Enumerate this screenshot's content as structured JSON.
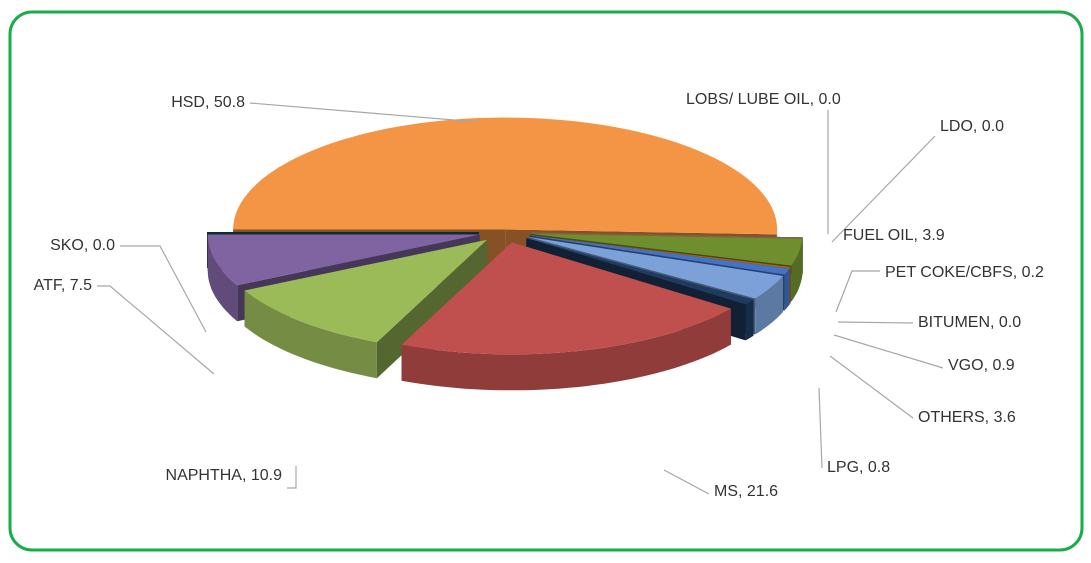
{
  "chart_data": {
    "type": "pie3d",
    "values": [
      50.8,
      0.0,
      0.0,
      3.9,
      0.2,
      0.0,
      0.9,
      3.6,
      0.8,
      21.6,
      10.9,
      7.5,
      0.0
    ],
    "value_labels": [
      "HSD, 50.8",
      "LOBS/ LUBE OIL, 0.0",
      "LDO, 0.0",
      "FUEL OIL, 3.9",
      "PET COKE/CBFS, 0.2",
      "BITUMEN, 0.0",
      "VGO, 0.9",
      "OTHERS, 3.6",
      "LPG, 0.8",
      "MS, 21.6",
      "NAPHTHA, 10.9",
      "ATF, 7.5",
      "SKO, 0.0"
    ],
    "colors": [
      "#f39544",
      "#a5a5a5",
      "#f4b183",
      "#6f8f2f",
      "#c55a11",
      "#bdd7ee",
      "#4472c4",
      "#7ba1d8",
      "#1f3b5e",
      "#c0504d",
      "#9bbb59",
      "#8064a2",
      "#1f4e5a"
    ]
  }
}
